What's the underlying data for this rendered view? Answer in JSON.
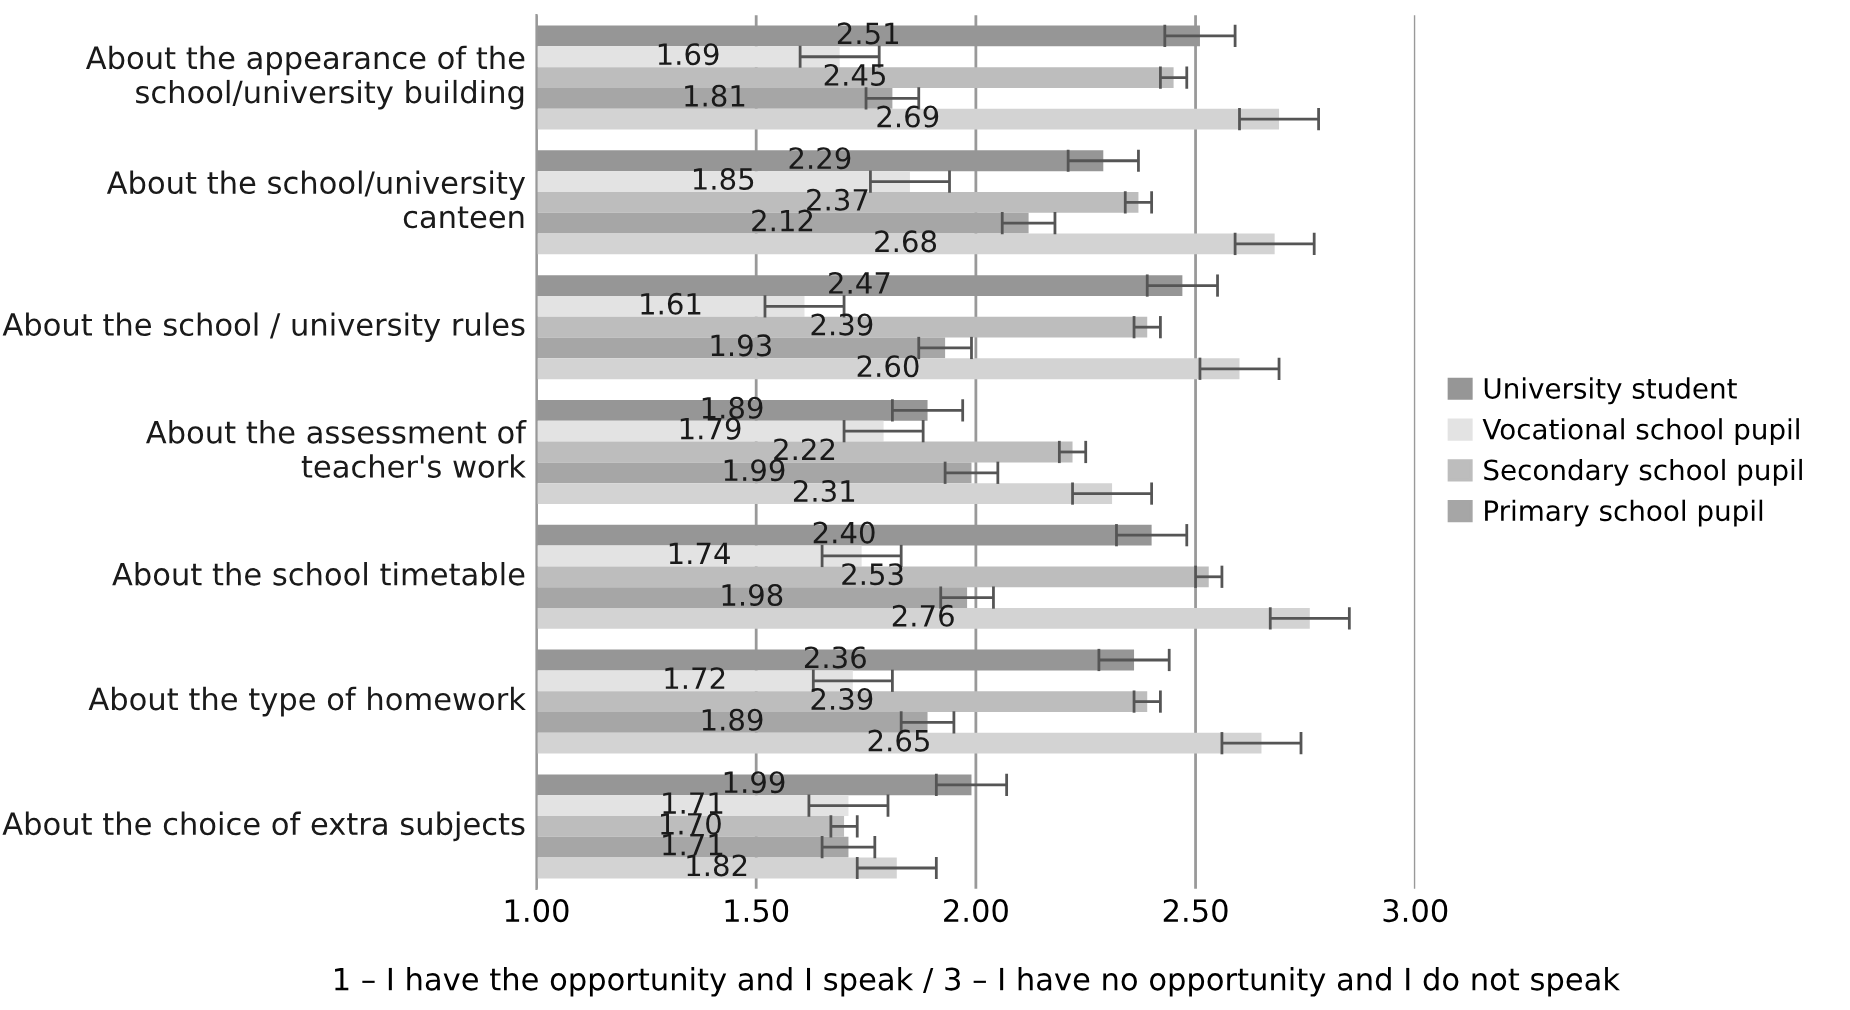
{
  "chart_data": {
    "type": "bar",
    "orientation": "horizontal",
    "xlabel": "1 – I have the opportunity and I speak / 3 – I have no opportunity and I do not speak",
    "categories": [
      "About the appearance of the school/university building",
      "About the school/university canteen",
      "About the school / university rules",
      "About the assessment of teacher's work",
      "About the school timetable",
      "About the type of homework",
      "About the choice of extra subjects"
    ],
    "series": [
      {
        "name": "University student",
        "color": "#969696",
        "values": [
          2.51,
          2.29,
          2.47,
          1.89,
          2.4,
          2.36,
          1.99
        ],
        "errors": [
          0.08,
          0.08,
          0.08,
          0.08,
          0.08,
          0.08,
          0.08
        ],
        "value_labels": [
          "2.51",
          "2.29",
          "2.47",
          "1.89",
          "2.40",
          "2.36",
          "1.99"
        ]
      },
      {
        "name": "Vocational school pupil",
        "color": "#e3e3e3",
        "values": [
          1.69,
          1.85,
          1.61,
          1.79,
          1.74,
          1.72,
          1.71
        ],
        "errors": [
          0.09,
          0.09,
          0.09,
          0.09,
          0.09,
          0.09,
          0.09
        ],
        "value_labels": [
          "1.69",
          "1.85",
          "1.61",
          "1.79",
          "1.74",
          "1.72",
          "1.71"
        ]
      },
      {
        "name": "Secondary school pupil",
        "color": "#bdbdbd",
        "values": [
          2.45,
          2.37,
          2.39,
          2.22,
          2.53,
          2.39,
          1.7
        ],
        "errors": [
          0.03,
          0.03,
          0.03,
          0.03,
          0.03,
          0.03,
          0.03
        ],
        "value_labels": [
          "2.45",
          "2.37",
          "2.39",
          "2.22",
          "2.53",
          "2.39",
          "1.70"
        ]
      },
      {
        "name": "Primary school pupil",
        "color": "#a6a6a6",
        "values": [
          1.81,
          2.12,
          1.93,
          1.99,
          1.98,
          1.89,
          1.71
        ],
        "errors": [
          0.06,
          0.06,
          0.06,
          0.06,
          0.06,
          0.06,
          0.06
        ],
        "value_labels": [
          "1.81",
          "2.12",
          "1.93",
          "1.99",
          "1.98",
          "1.89",
          "1.71"
        ]
      },
      {
        "color": "#d3d3d3",
        "values": [
          2.69,
          2.68,
          2.6,
          2.31,
          2.76,
          2.65,
          1.82
        ],
        "errors": [
          0.09,
          0.09,
          0.09,
          0.09,
          0.09,
          0.09,
          0.09
        ],
        "value_labels": [
          "2.69",
          "2.68",
          "2.60",
          "2.31",
          "2.76",
          "2.65",
          "1.82"
        ]
      }
    ],
    "xlim": [
      1.0,
      3.0
    ],
    "xticks": [
      {
        "value": 1.0,
        "label": "1.00"
      },
      {
        "value": 1.5,
        "label": "1.50"
      },
      {
        "value": 2.0,
        "label": "2.00"
      },
      {
        "value": 2.5,
        "label": "2.50"
      },
      {
        "value": 3.0,
        "label": "3.00"
      }
    ],
    "grid": "x",
    "legend": "right"
  }
}
